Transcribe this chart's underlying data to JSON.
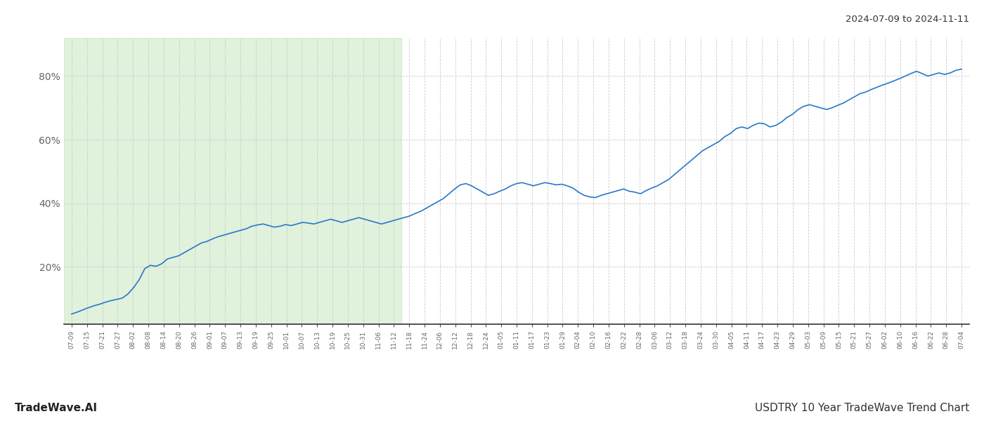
{
  "title_right": "2024-07-09 to 2024-11-11",
  "footer_left": "TradeWave.AI",
  "footer_right": "USDTRY 10 Year TradeWave Trend Chart",
  "line_color": "#2878c8",
  "line_width": 1.2,
  "shade_color": "#c8e6c0",
  "shade_alpha": 0.55,
  "background_color": "#ffffff",
  "grid_color": "#cccccc",
  "grid_style": "--",
  "ytick_labels": [
    "20%",
    "40%",
    "60%",
    "80%"
  ],
  "ytick_values": [
    20,
    40,
    60,
    80
  ],
  "ylim": [
    2,
    92
  ],
  "xtick_labels": [
    "07-09",
    "07-15",
    "07-21",
    "07-27",
    "08-02",
    "08-08",
    "08-14",
    "08-20",
    "08-26",
    "09-01",
    "09-07",
    "09-13",
    "09-19",
    "09-25",
    "10-01",
    "10-07",
    "10-13",
    "10-19",
    "10-25",
    "10-31",
    "11-06",
    "11-12",
    "11-18",
    "11-24",
    "12-06",
    "12-12",
    "12-18",
    "12-24",
    "01-05",
    "01-11",
    "01-17",
    "01-23",
    "01-29",
    "02-04",
    "02-10",
    "02-16",
    "02-22",
    "02-28",
    "03-06",
    "03-12",
    "03-18",
    "03-24",
    "03-30",
    "04-05",
    "04-11",
    "04-17",
    "04-23",
    "04-29",
    "05-03",
    "05-09",
    "05-15",
    "05-21",
    "05-27",
    "06-02",
    "06-10",
    "06-16",
    "06-22",
    "06-28",
    "07-04"
  ],
  "shade_start_label": "07-09",
  "shade_end_label": "11-12",
  "data_y": [
    5.2,
    5.8,
    6.5,
    7.2,
    7.8,
    8.3,
    8.9,
    9.4,
    9.8,
    10.2,
    11.5,
    13.5,
    16.0,
    19.5,
    20.5,
    20.2,
    21.0,
    22.5,
    23.0,
    23.5,
    24.5,
    25.5,
    26.5,
    27.5,
    28.0,
    28.8,
    29.5,
    30.0,
    30.5,
    31.0,
    31.5,
    32.0,
    32.8,
    33.2,
    33.5,
    33.0,
    32.5,
    32.8,
    33.3,
    33.0,
    33.5,
    34.0,
    33.8,
    33.5,
    34.0,
    34.5,
    35.0,
    34.5,
    34.0,
    34.5,
    35.0,
    35.5,
    35.0,
    34.5,
    34.0,
    33.5,
    34.0,
    34.5,
    35.0,
    35.5,
    36.0,
    36.8,
    37.5,
    38.5,
    39.5,
    40.5,
    41.5,
    43.0,
    44.5,
    45.8,
    46.2,
    45.5,
    44.5,
    43.5,
    42.5,
    43.0,
    43.8,
    44.5,
    45.5,
    46.2,
    46.5,
    46.0,
    45.5,
    46.0,
    46.5,
    46.2,
    45.8,
    46.0,
    45.5,
    44.8,
    43.5,
    42.5,
    42.0,
    41.8,
    42.5,
    43.0,
    43.5,
    44.0,
    44.5,
    43.8,
    43.5,
    43.0,
    44.0,
    44.8,
    45.5,
    46.5,
    47.5,
    49.0,
    50.5,
    52.0,
    53.5,
    55.0,
    56.5,
    57.5,
    58.5,
    59.5,
    61.0,
    62.0,
    63.5,
    64.0,
    63.5,
    64.5,
    65.2,
    65.0,
    64.0,
    64.5,
    65.5,
    67.0,
    68.0,
    69.5,
    70.5,
    71.0,
    70.5,
    70.0,
    69.5,
    70.0,
    70.8,
    71.5,
    72.5,
    73.5,
    74.5,
    75.0,
    75.8,
    76.5,
    77.2,
    77.8,
    78.5,
    79.2,
    80.0,
    80.8,
    81.5,
    80.8,
    80.0,
    80.5,
    81.0,
    80.5,
    81.0,
    81.8,
    82.2
  ]
}
